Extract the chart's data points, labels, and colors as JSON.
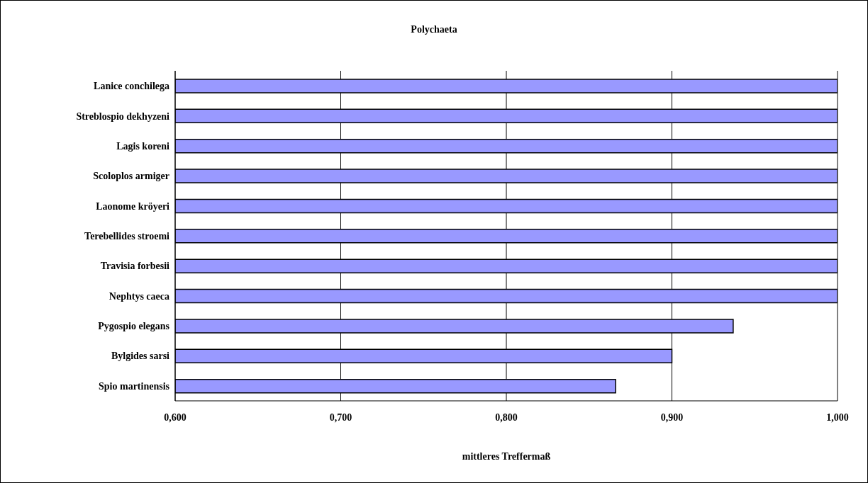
{
  "chart_data": {
    "type": "bar",
    "orientation": "horizontal",
    "title": "Polychaeta",
    "xlabel": "mittleres Treffermaß",
    "categories": [
      "Lanice conchilega",
      "Streblospio dekhyzeni",
      "Lagis koreni",
      "Scoloplos armiger",
      "Laonome kröyeri",
      "Terebellides stroemi",
      "Travisia forbesii",
      "Nephtys caeca",
      "Pygospio elegans",
      "Bylgides sarsi",
      "Spio martinensis"
    ],
    "values": [
      1.0,
      1.0,
      1.0,
      1.0,
      1.0,
      1.0,
      1.0,
      1.0,
      0.937,
      0.9,
      0.866
    ],
    "color": "#9999ff",
    "xlim": [
      0.6,
      1.0
    ],
    "xticks": [
      {
        "value": 0.6,
        "label": "0,600"
      },
      {
        "value": 0.7,
        "label": "0,700"
      },
      {
        "value": 0.8,
        "label": "0,800"
      },
      {
        "value": 0.9,
        "label": "0,900"
      },
      {
        "value": 1.0,
        "label": "1,000"
      }
    ],
    "grid": "x",
    "legend": false
  }
}
